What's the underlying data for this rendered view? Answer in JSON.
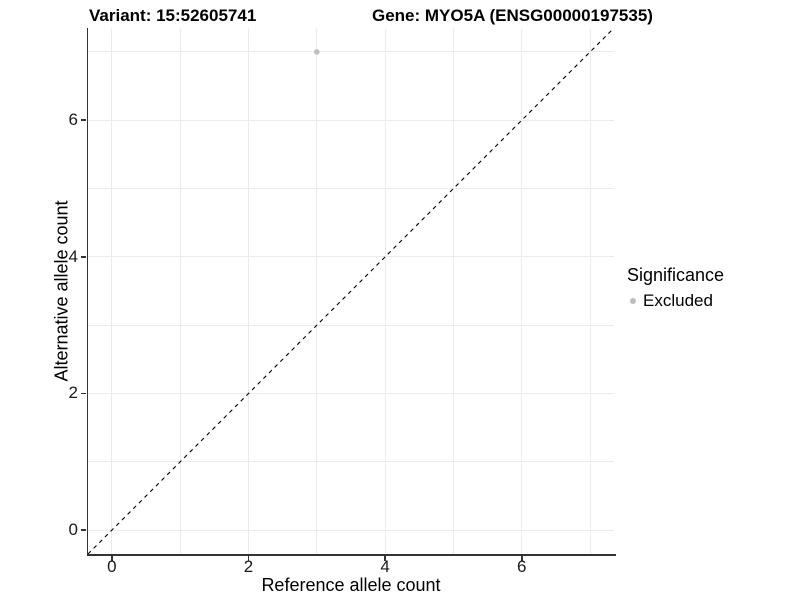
{
  "chart_data": {
    "type": "scatter",
    "title_left": "Variant: 15:52605741",
    "title_right": "Gene: MYO5A (ENSG00000197535)",
    "xlabel": "Reference allele count",
    "ylabel": "Alternative allele count",
    "xticks": [
      0,
      2,
      4,
      6
    ],
    "yticks": [
      0,
      2,
      4,
      6
    ],
    "minor_gridlines": [
      1,
      3,
      5,
      7
    ],
    "xlim": [
      -0.35,
      7.35
    ],
    "ylim": [
      -0.35,
      7.35
    ],
    "grid": true,
    "legend_position": "right",
    "series": [
      {
        "name": "Excluded",
        "color": "#bdbdbd",
        "points": [
          {
            "x": 3,
            "y": 7
          }
        ]
      }
    ],
    "reference_line": {
      "type": "identity",
      "style": "dashed",
      "color": "#000000"
    },
    "legend": {
      "title": "Significance",
      "entries": [
        {
          "label": "Excluded",
          "color": "#bdbdbd"
        }
      ]
    }
  },
  "colors": {
    "background": "#ffffff",
    "grid": "#ebebeb",
    "axis_line": "#333333",
    "tick_text": "#1a1a1a",
    "title_text": "#000000",
    "point": "#bdbdbd"
  }
}
